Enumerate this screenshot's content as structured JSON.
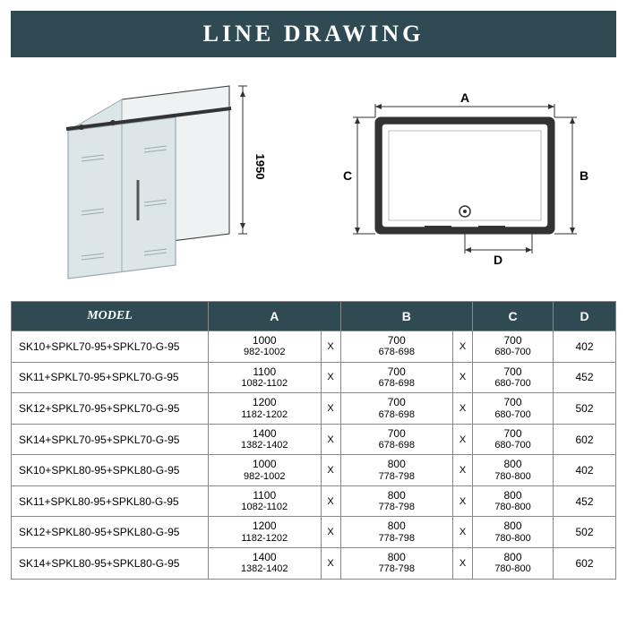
{
  "banner": {
    "title": "LINE DRAWING"
  },
  "colors": {
    "header_bg": "#2f4a52",
    "header_text": "#ffffff",
    "border": "#888888",
    "glass": "#dce6e8",
    "glass_stroke": "#9aaab0",
    "frame": "#333333"
  },
  "diagram_3d": {
    "height_label": "1950"
  },
  "diagram_top": {
    "labels": {
      "A": "A",
      "B": "B",
      "C": "C",
      "D": "D"
    }
  },
  "table": {
    "headers": [
      "MODEL",
      "A",
      "B",
      "C",
      "D"
    ],
    "rows": [
      {
        "model": "SK10+SPKL70-95+SPKL70-G-95",
        "A": {
          "main": "1000",
          "range": "982-1002"
        },
        "B": {
          "main": "700",
          "range": "678-698"
        },
        "C": {
          "main": "700",
          "range": "680-700"
        },
        "D": "402"
      },
      {
        "model": "SK11+SPKL70-95+SPKL70-G-95",
        "A": {
          "main": "1100",
          "range": "1082-1102"
        },
        "B": {
          "main": "700",
          "range": "678-698"
        },
        "C": {
          "main": "700",
          "range": "680-700"
        },
        "D": "452"
      },
      {
        "model": "SK12+SPKL70-95+SPKL70-G-95",
        "A": {
          "main": "1200",
          "range": "1182-1202"
        },
        "B": {
          "main": "700",
          "range": "678-698"
        },
        "C": {
          "main": "700",
          "range": "680-700"
        },
        "D": "502"
      },
      {
        "model": "SK14+SPKL70-95+SPKL70-G-95",
        "A": {
          "main": "1400",
          "range": "1382-1402"
        },
        "B": {
          "main": "700",
          "range": "678-698"
        },
        "C": {
          "main": "700",
          "range": "680-700"
        },
        "D": "602"
      },
      {
        "model": "SK10+SPKL80-95+SPKL80-G-95",
        "A": {
          "main": "1000",
          "range": "982-1002"
        },
        "B": {
          "main": "800",
          "range": "778-798"
        },
        "C": {
          "main": "800",
          "range": "780-800"
        },
        "D": "402"
      },
      {
        "model": "SK11+SPKL80-95+SPKL80-G-95",
        "A": {
          "main": "1100",
          "range": "1082-1102"
        },
        "B": {
          "main": "800",
          "range": "778-798"
        },
        "C": {
          "main": "800",
          "range": "780-800"
        },
        "D": "452"
      },
      {
        "model": "SK12+SPKL80-95+SPKL80-G-95",
        "A": {
          "main": "1200",
          "range": "1182-1202"
        },
        "B": {
          "main": "800",
          "range": "778-798"
        },
        "C": {
          "main": "800",
          "range": "780-800"
        },
        "D": "502"
      },
      {
        "model": "SK14+SPKL80-95+SPKL80-G-95",
        "A": {
          "main": "1400",
          "range": "1382-1402"
        },
        "B": {
          "main": "800",
          "range": "778-798"
        },
        "C": {
          "main": "800",
          "range": "780-800"
        },
        "D": "602"
      }
    ],
    "x_sep": "X"
  }
}
